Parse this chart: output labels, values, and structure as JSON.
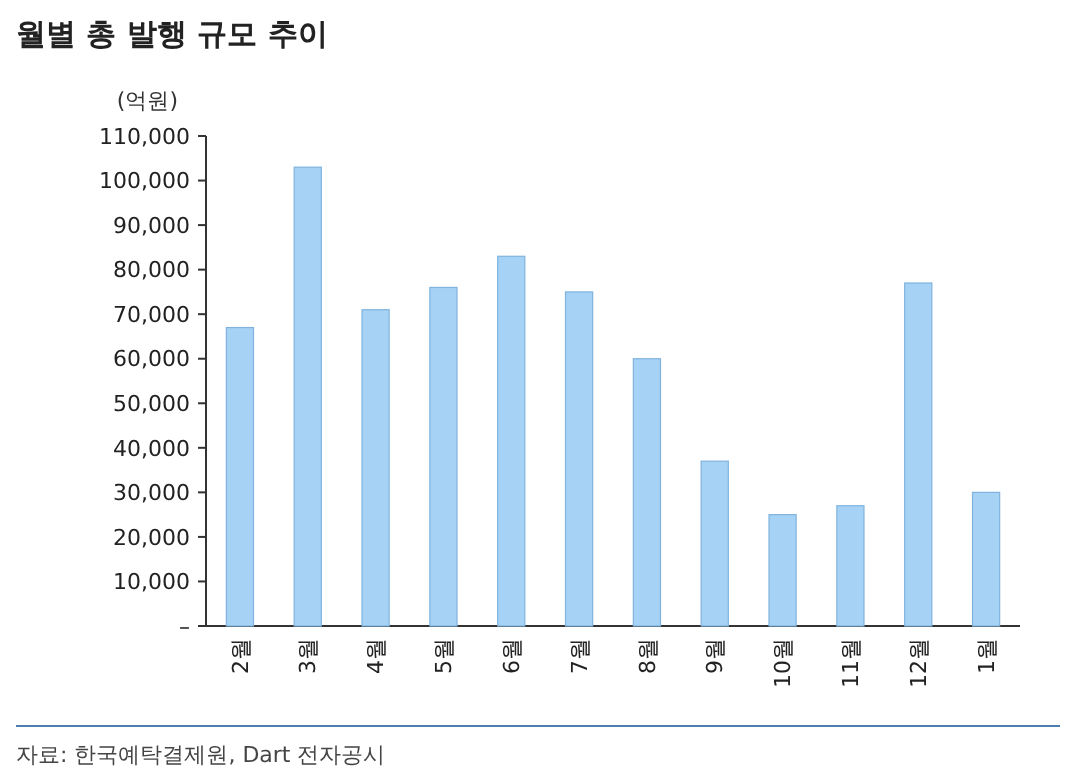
{
  "chart_data": {
    "type": "bar",
    "title": "월별 총 발행 규모 추이",
    "ylabel": "(억원)",
    "categories": [
      "2월",
      "3월",
      "4월",
      "5월",
      "6월",
      "7월",
      "8월",
      "9월",
      "10월",
      "11월",
      "12월",
      "1월"
    ],
    "values": [
      67000,
      103000,
      71000,
      76000,
      83000,
      75000,
      60000,
      37000,
      25000,
      27000,
      77000,
      30000
    ],
    "color": "#a6d2f5",
    "ylim": [
      0,
      110000
    ],
    "yticks": [
      {
        "value": 0,
        "label": "–"
      },
      {
        "value": 10000,
        "label": "10,000"
      },
      {
        "value": 20000,
        "label": "20,000"
      },
      {
        "value": 30000,
        "label": "30,000"
      },
      {
        "value": 40000,
        "label": "40,000"
      },
      {
        "value": 50000,
        "label": "50,000"
      },
      {
        "value": 60000,
        "label": "60,000"
      },
      {
        "value": 70000,
        "label": "70,000"
      },
      {
        "value": 80000,
        "label": "80,000"
      },
      {
        "value": 90000,
        "label": "90,000"
      },
      {
        "value": 100000,
        "label": "100,000"
      },
      {
        "value": 110000,
        "label": "110,000"
      }
    ],
    "annotations": [
      "자료: 한국예탁결제원, Dart 전자공시"
    ]
  }
}
